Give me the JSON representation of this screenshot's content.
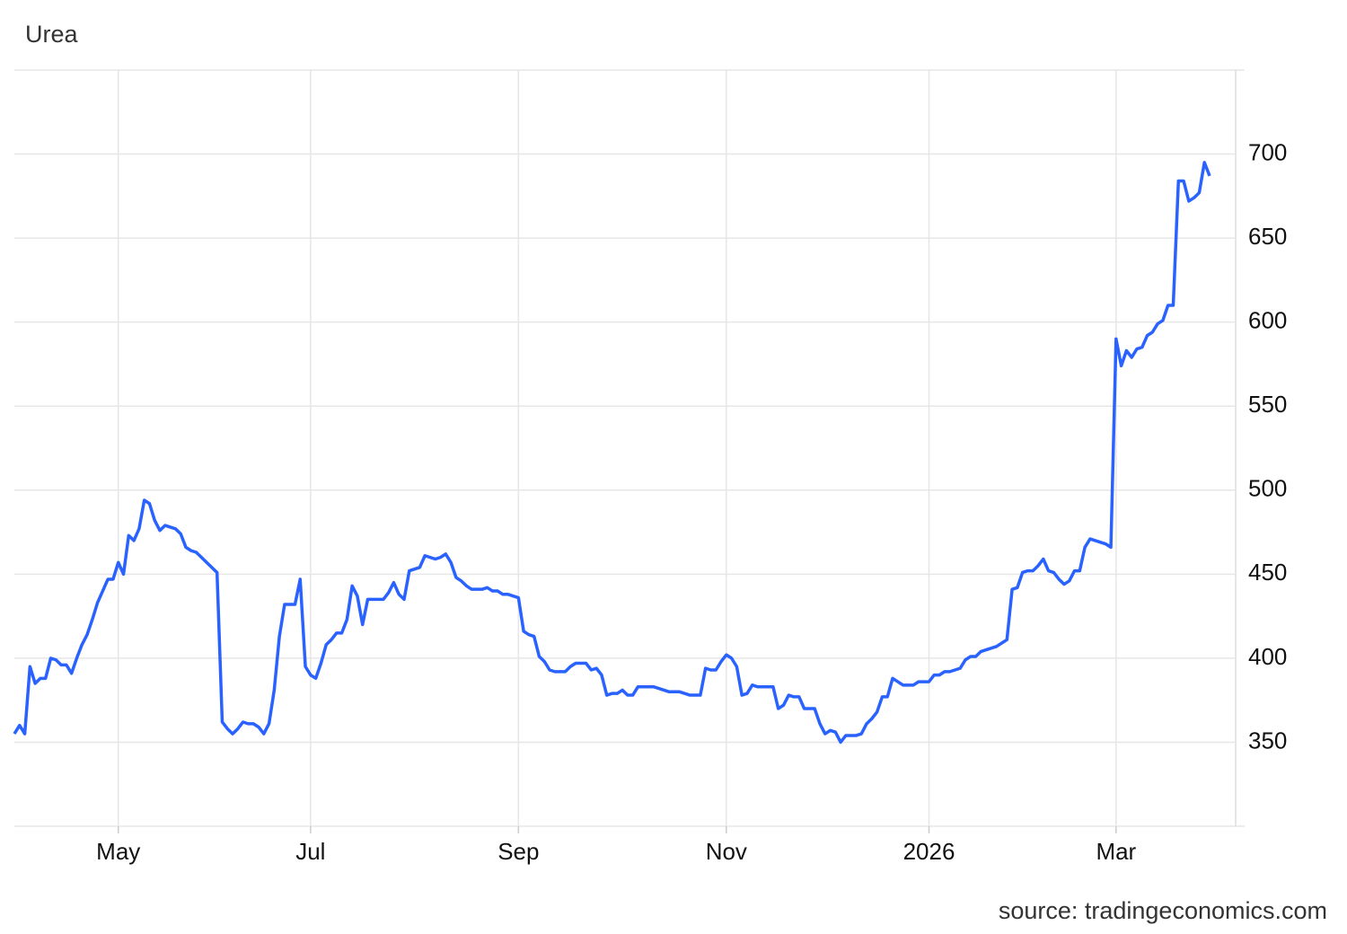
{
  "chart_data": {
    "type": "line",
    "title": "Urea",
    "source": "source: tradingeconomics.com",
    "color": "#2962ff",
    "grid": true,
    "categories": [
      null,
      null,
      null,
      null,
      null,
      null,
      null,
      null,
      null,
      null,
      null,
      null,
      null,
      null,
      null,
      null,
      null,
      null,
      null,
      null,
      "May",
      null,
      null,
      null,
      null,
      null,
      null,
      null,
      null,
      null,
      null,
      null,
      null,
      null,
      null,
      null,
      null,
      null,
      null,
      null,
      null,
      null,
      null,
      null,
      null,
      null,
      null,
      null,
      null,
      null,
      null,
      null,
      null,
      null,
      null,
      null,
      null,
      "Jul",
      null,
      null,
      null,
      null,
      null,
      null,
      null,
      null,
      null,
      null,
      null,
      null,
      null,
      null,
      null,
      null,
      null,
      null,
      null,
      null,
      null,
      null,
      null,
      null,
      null,
      null,
      null,
      null,
      null,
      null,
      null,
      null,
      null,
      null,
      null,
      null,
      null,
      null,
      null,
      "Sep",
      null,
      null,
      null,
      null,
      null,
      null,
      null,
      null,
      null,
      null,
      null,
      null,
      null,
      null,
      null,
      null,
      null,
      null,
      null,
      null,
      null,
      null,
      null,
      null,
      null,
      null,
      null,
      null,
      null,
      null,
      null,
      null,
      null,
      null,
      null,
      null,
      null,
      null,
      null,
      "Nov",
      null,
      null,
      null,
      null,
      null,
      null,
      null,
      null,
      null,
      null,
      null,
      null,
      null,
      null,
      null,
      null,
      null,
      null,
      null,
      null,
      null,
      null,
      null,
      null,
      null,
      null,
      null,
      null,
      null,
      null,
      null,
      null,
      null,
      null,
      null,
      null,
      null,
      null,
      "2026",
      null,
      null,
      null,
      null,
      null,
      null,
      null,
      null,
      null,
      null,
      null,
      null,
      null,
      null,
      null,
      null,
      null,
      null,
      null,
      null,
      null,
      null,
      null,
      null,
      null,
      null,
      null,
      null,
      null,
      null,
      null,
      null,
      null,
      null,
      null,
      "Mar",
      null,
      null,
      null,
      null,
      null,
      null,
      null,
      null,
      null,
      null,
      null,
      null,
      null,
      null,
      null,
      null,
      null,
      null
    ],
    "values": [
      355,
      360,
      355,
      395,
      385,
      388,
      388,
      400,
      399,
      396,
      396,
      391,
      400,
      408,
      414,
      423,
      433,
      440,
      447,
      447,
      457,
      450,
      473,
      470,
      477,
      494,
      492,
      482,
      476,
      479,
      478,
      477,
      474,
      466,
      464,
      463,
      460,
      457,
      454,
      451,
      362,
      358,
      355,
      358,
      362,
      361,
      361,
      359,
      355,
      361,
      381,
      413,
      432,
      432,
      432,
      447,
      395,
      390,
      388,
      397,
      408,
      411,
      415,
      415,
      423,
      443,
      437,
      420,
      435,
      435,
      435,
      435,
      439,
      445,
      438,
      435,
      452,
      453,
      454,
      461,
      460,
      459,
      460,
      462,
      457,
      448,
      446,
      443,
      441,
      441,
      441,
      442,
      440,
      440,
      438,
      438,
      437,
      436,
      416,
      414,
      413,
      401,
      398,
      393,
      392,
      392,
      392,
      395,
      397,
      397,
      397,
      393,
      394,
      390,
      378,
      379,
      379,
      381,
      378,
      378,
      383,
      383,
      383,
      383,
      382,
      381,
      380,
      380,
      380,
      379,
      378,
      378,
      378,
      394,
      393,
      393,
      398,
      402,
      400,
      395,
      378,
      379,
      384,
      383,
      383,
      383,
      383,
      370,
      372,
      378,
      377,
      377,
      370,
      370,
      370,
      361,
      355,
      357,
      356,
      350,
      354,
      354,
      354,
      355,
      361,
      364,
      368,
      377,
      377,
      388,
      386,
      384,
      384,
      384,
      386,
      386,
      386,
      390,
      390,
      392,
      392,
      393,
      394,
      399,
      401,
      401,
      404,
      405,
      406,
      407,
      409,
      411,
      441,
      442,
      451,
      452,
      452,
      455,
      459,
      452,
      451,
      447,
      444,
      446,
      452,
      452,
      466,
      471,
      470,
      469,
      468,
      466,
      590,
      574,
      583,
      579,
      584,
      585,
      592,
      594,
      599,
      601,
      610,
      610,
      684,
      684,
      672,
      674,
      677,
      695,
      687
    ],
    "ylim": [
      300,
      750
    ],
    "yticks": [
      350,
      400,
      450,
      500,
      550,
      600,
      650,
      700
    ]
  }
}
